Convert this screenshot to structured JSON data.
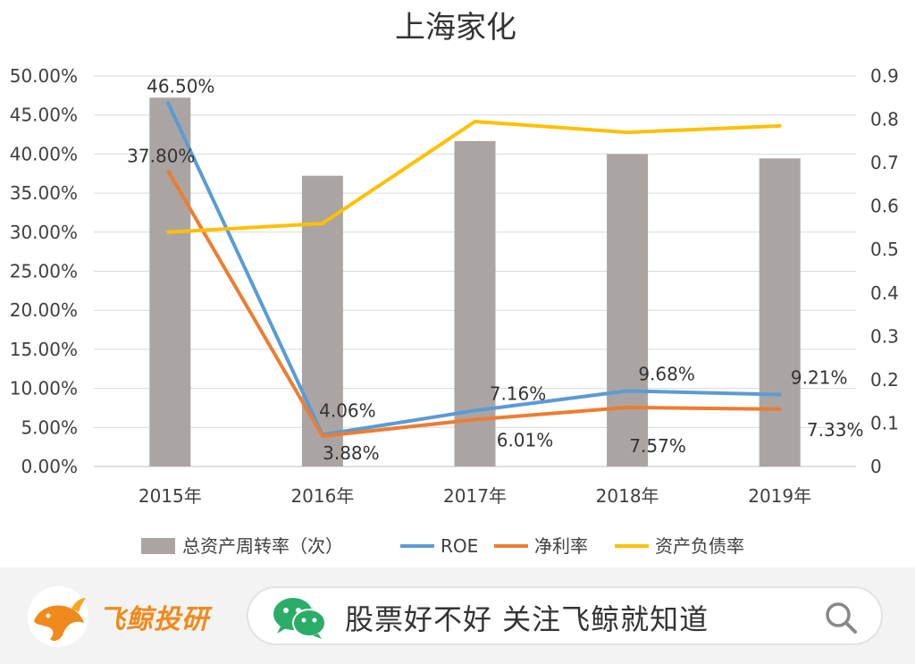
{
  "chart_data": {
    "type": "bar+line",
    "title": "上海家化",
    "categories": [
      "2015年",
      "2016年",
      "2017年",
      "2018年",
      "2019年"
    ],
    "y_left": {
      "ticks": [
        "0.00%",
        "5.00%",
        "10.00%",
        "15.00%",
        "20.00%",
        "25.00%",
        "30.00%",
        "35.00%",
        "40.00%",
        "45.00%",
        "50.00%"
      ],
      "range": [
        0,
        50
      ]
    },
    "y_right": {
      "ticks": [
        "0",
        "0.1",
        "0.2",
        "0.3",
        "0.4",
        "0.5",
        "0.6",
        "0.7",
        "0.8",
        "0.9"
      ],
      "range": [
        0,
        0.9
      ]
    },
    "series": [
      {
        "name": "总资产周转率（次）",
        "type": "bar",
        "axis": "right",
        "color": "#aaa5a3",
        "values": [
          0.85,
          0.67,
          0.75,
          0.72,
          0.71
        ]
      },
      {
        "name": "ROE",
        "type": "line",
        "axis": "left",
        "color": "#5b9bd5",
        "values": [
          46.5,
          4.06,
          7.16,
          9.68,
          9.21
        ],
        "labels": [
          "46.50%",
          "4.06%",
          "7.16%",
          "9.68%",
          "9.21%"
        ]
      },
      {
        "name": "净利率",
        "type": "line",
        "axis": "left",
        "color": "#ed7d31",
        "values": [
          37.8,
          3.88,
          6.01,
          7.57,
          7.33
        ],
        "labels": [
          "37.80%",
          "3.88%",
          "6.01%",
          "7.57%",
          "7.33%"
        ]
      },
      {
        "name": "资产负债率",
        "type": "line",
        "axis": "right",
        "color": "#ffc000",
        "values": [
          0.54,
          0.56,
          0.795,
          0.77,
          0.785
        ]
      }
    ],
    "legend_position": "bottom",
    "grid": true
  },
  "footer": {
    "brand_name": "飞鲸投研",
    "search_text": "股票好不好 关注飞鲸就知道"
  }
}
